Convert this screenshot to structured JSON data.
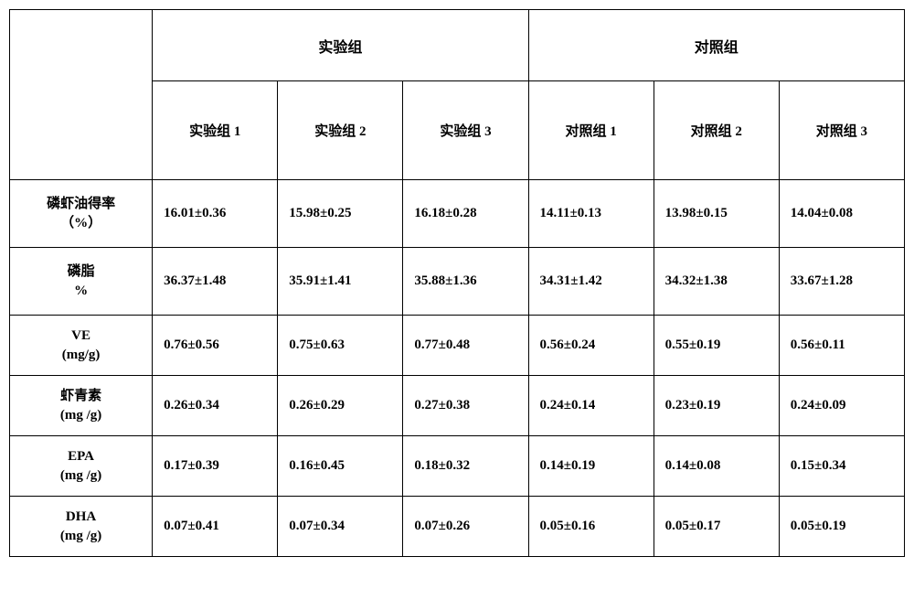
{
  "table": {
    "type": "table",
    "background_color": "#ffffff",
    "border_color": "#000000",
    "text_color": "#000000",
    "font_family": "SimSun",
    "header_fontsize": 16,
    "subheader_fontsize": 15,
    "rowheader_fontsize": 15,
    "data_fontsize": 15,
    "font_weight": "bold",
    "group_headers": {
      "experimental": "实验组",
      "control": "对照组"
    },
    "sub_headers": {
      "exp1": "实验组 1",
      "exp2": "实验组 2",
      "exp3": "实验组 3",
      "ctrl1": "对照组 1",
      "ctrl2": "对照组 2",
      "ctrl3": "对照组 3"
    },
    "rows": [
      {
        "label_line1": "磷虾油得率",
        "label_line2": "（%）",
        "cells": [
          "16.01±0.36",
          "15.98±0.25",
          "16.18±0.28",
          "14.11±0.13",
          "13.98±0.15",
          "14.04±0.08"
        ]
      },
      {
        "label_line1": "磷脂",
        "label_line2": "%",
        "cells": [
          "36.37±1.48",
          "35.91±1.41",
          "35.88±1.36",
          "34.31±1.42",
          "34.32±1.38",
          "33.67±1.28"
        ]
      },
      {
        "label_line1": "VE",
        "label_line2": "(mg/g)",
        "cells": [
          "0.76±0.56",
          "0.75±0.63",
          "0.77±0.48",
          "0.56±0.24",
          "0.55±0.19",
          "0.56±0.11"
        ]
      },
      {
        "label_line1": "虾青素",
        "label_line2": "(mg /g)",
        "cells": [
          "0.26±0.34",
          "0.26±0.29",
          "0.27±0.38",
          "0.24±0.14",
          "0.23±0.19",
          "0.24±0.09"
        ]
      },
      {
        "label_line1": "EPA",
        "label_line2": "(mg /g)",
        "cells": [
          "0.17±0.39",
          "0.16±0.45",
          "0.18±0.32",
          "0.14±0.19",
          "0.14±0.08",
          "0.15±0.34"
        ]
      },
      {
        "label_line1": "DHA",
        "label_line2": "(mg /g)",
        "cells": [
          "0.07±0.41",
          "0.07±0.34",
          "0.07±0.26",
          "0.05±0.16",
          "0.05±0.17",
          "0.05±0.19"
        ]
      }
    ],
    "column_widths": {
      "row_header": 156,
      "data_column": 137
    }
  }
}
